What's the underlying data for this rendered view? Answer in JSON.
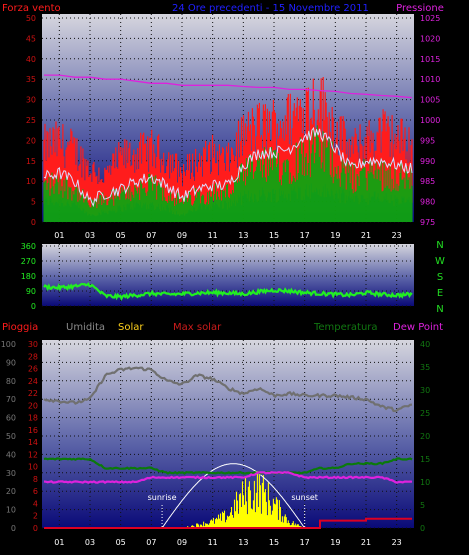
{
  "header": {
    "left_label": "Forza vento",
    "center_label": "24 Ore precedenti - 15 Novembre 2011",
    "right_label": "Pressione"
  },
  "bottom_labels": {
    "rain": "Pioggia",
    "humidity": "Umidita",
    "solar": "Solar",
    "max_solar": "Max solar",
    "temperature": "Temperatura",
    "dewpoint": "Dew Point"
  },
  "compass": [
    "N",
    "W",
    "S",
    "E",
    "N"
  ],
  "annotations": {
    "sunrise": "sunrise",
    "sunset": "sunset"
  },
  "colors": {
    "wind": "#ff1c1c",
    "gust_max": "#ff0000",
    "wind_avg": "#dcdcff",
    "wind_green": "#11a311",
    "pressure": "#dd22dd",
    "direction": "#22ee22",
    "humidity": "#707070",
    "temperature": "#0b7a0b",
    "dewpoint": "#dd22dd",
    "solar": "#ffff00",
    "max_solar": "#ffffff",
    "rain": "#dd0022",
    "header_center": "#2020ff"
  },
  "chart_data": [
    {
      "type": "area",
      "name": "wind",
      "x_ticks": [
        "01",
        "03",
        "05",
        "07",
        "09",
        "11",
        "13",
        "15",
        "17",
        "19",
        "21",
        "23"
      ],
      "y_left": {
        "range": [
          0,
          50
        ],
        "ticks": [
          0,
          5,
          10,
          15,
          20,
          25,
          30,
          35,
          40,
          45,
          50
        ]
      },
      "y_right": {
        "range": [
          975,
          1025
        ],
        "ticks": [
          975,
          980,
          985,
          990,
          995,
          1000,
          1005,
          1010,
          1015,
          1020,
          1025
        ]
      },
      "hours": [
        0,
        1,
        2,
        3,
        4,
        5,
        6,
        7,
        8,
        9,
        10,
        11,
        12,
        13,
        14,
        15,
        16,
        17,
        18,
        19,
        20,
        21,
        22,
        23,
        24
      ],
      "gust": [
        20,
        21,
        19,
        14,
        12,
        17,
        18,
        19,
        17,
        13,
        16,
        18,
        16,
        23,
        25,
        26,
        27,
        31,
        32,
        25,
        19,
        21,
        24,
        22,
        21
      ],
      "avg": [
        11,
        12,
        10,
        5,
        7,
        8,
        10,
        11,
        9,
        6,
        8,
        9,
        9,
        14,
        17,
        17,
        18,
        21,
        22,
        18,
        13,
        15,
        15,
        14,
        13
      ],
      "lull": [
        6,
        6,
        5,
        2,
        3,
        4,
        5,
        5,
        4,
        2,
        4,
        5,
        5,
        7,
        8,
        8,
        8,
        9,
        9,
        8,
        7,
        7,
        7,
        6,
        6
      ],
      "pressure": [
        1011,
        1011,
        1010.5,
        1010.5,
        1010,
        1010,
        1009.5,
        1009,
        1009,
        1008.5,
        1008.5,
        1008.5,
        1008.5,
        1008.2,
        1008,
        1008,
        1007.5,
        1007.5,
        1007.2,
        1007,
        1006.5,
        1006.3,
        1006,
        1005.8,
        1005.5
      ]
    },
    {
      "type": "line",
      "name": "wind direction",
      "y_ticks": [
        0,
        90,
        180,
        270,
        360
      ],
      "y_range": [
        0,
        360
      ],
      "hours": [
        0,
        1,
        2,
        3,
        4,
        5,
        6,
        7,
        8,
        9,
        10,
        11,
        12,
        13,
        14,
        15,
        16,
        17,
        18,
        19,
        20,
        21,
        22,
        23,
        24
      ],
      "direction": [
        115,
        110,
        118,
        130,
        60,
        55,
        65,
        75,
        70,
        72,
        78,
        80,
        78,
        72,
        85,
        95,
        90,
        80,
        75,
        70,
        65,
        80,
        70,
        65,
        70
      ]
    },
    {
      "type": "line",
      "name": "temperature humidity solar rain",
      "x_ticks": [
        "01",
        "03",
        "05",
        "07",
        "09",
        "11",
        "13",
        "15",
        "17",
        "19",
        "21",
        "23"
      ],
      "y_humidity": {
        "range": [
          0,
          100
        ],
        "ticks": [
          0,
          10,
          20,
          30,
          40,
          50,
          60,
          70,
          80,
          90,
          100
        ]
      },
      "y_rain": {
        "range": [
          0,
          30
        ],
        "ticks": [
          0,
          2,
          4,
          6,
          8,
          10,
          12,
          14,
          16,
          18,
          20,
          22,
          24,
          26,
          28,
          30
        ]
      },
      "y_temp": {
        "range": [
          0,
          40
        ],
        "ticks": [
          0,
          5,
          10,
          15,
          20,
          25,
          30,
          35,
          40
        ]
      },
      "hours": [
        0,
        1,
        2,
        3,
        4,
        5,
        6,
        7,
        8,
        9,
        10,
        11,
        12,
        13,
        14,
        15,
        16,
        17,
        18,
        19,
        20,
        21,
        22,
        23,
        24
      ],
      "humidity": [
        70,
        69,
        68,
        70,
        83,
        86,
        87,
        86,
        80,
        78,
        83,
        81,
        76,
        73,
        76,
        72,
        73,
        72,
        72,
        72,
        71,
        70,
        66,
        64,
        67
      ],
      "temperature": [
        15,
        15,
        15,
        15,
        13,
        13,
        13,
        13,
        12,
        12,
        12,
        12,
        12,
        12,
        12,
        12,
        12,
        12,
        13,
        13,
        14,
        14,
        14,
        15,
        15
      ],
      "dewpoint": [
        10,
        10,
        10,
        10,
        10,
        10,
        10,
        11,
        11,
        11,
        11,
        11,
        11,
        11,
        12,
        12,
        12,
        11,
        11,
        11,
        11,
        11,
        11,
        10,
        10
      ],
      "solar": [
        0,
        0,
        0,
        0,
        0,
        0,
        0,
        0,
        0,
        0,
        20,
        40,
        80,
        200,
        250,
        150,
        40,
        0,
        0,
        0,
        0,
        0,
        0,
        0,
        0
      ],
      "max_solar": [
        0,
        0,
        0,
        0,
        0,
        0,
        0,
        0,
        20,
        120,
        220,
        290,
        330,
        320,
        270,
        180,
        60,
        0,
        0,
        0,
        0,
        0,
        0,
        0,
        0
      ],
      "rain": [
        0,
        0,
        0,
        0,
        0,
        0,
        0,
        0,
        0,
        0,
        0,
        0,
        0,
        0,
        0,
        0,
        0,
        0,
        1.2,
        1.2,
        1.2,
        1.5,
        1.5,
        1.5,
        1.5
      ],
      "sunrise_hour": 7.7,
      "sunset_hour": 17.0
    }
  ]
}
